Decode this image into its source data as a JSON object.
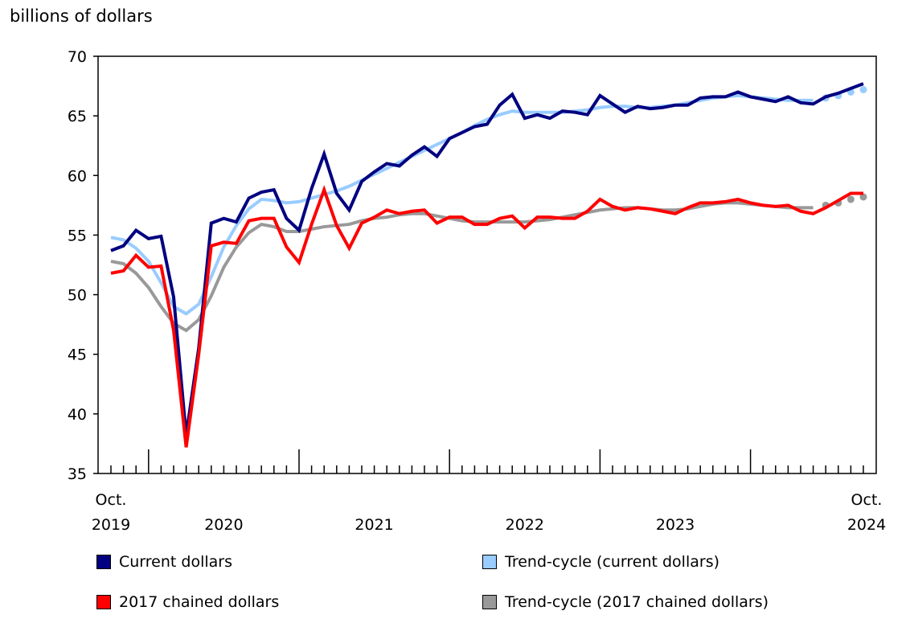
{
  "chart_data": {
    "type": "line",
    "ylabel": "billions of dollars",
    "ylim": [
      35,
      70
    ],
    "yticks": [
      35,
      40,
      45,
      50,
      55,
      60,
      65,
      70
    ],
    "x_start": "2019-10",
    "x_end": "2024-10",
    "x_tick_labels": [
      {
        "line1": "Oct.",
        "line2": "2019",
        "month": "2019-10"
      },
      {
        "line1": "",
        "line2": "2020",
        "month": "2020-07"
      },
      {
        "line1": "",
        "line2": "2021",
        "month": "2021-07"
      },
      {
        "line1": "",
        "line2": "2022",
        "month": "2022-07"
      },
      {
        "line1": "",
        "line2": "2023",
        "month": "2023-07"
      },
      {
        "line1": "Oct.",
        "line2": "2024",
        "month": "2024-10"
      }
    ],
    "grid": false,
    "legend_position": "bottom",
    "series": [
      {
        "name": "Current dollars",
        "color": "#000080",
        "style": "line",
        "values": [
          53.7,
          54.1,
          55.4,
          54.7,
          54.9,
          49.8,
          38.2,
          45.5,
          56.0,
          56.4,
          56.1,
          58.1,
          58.6,
          58.8,
          56.4,
          55.4,
          58.9,
          61.8,
          58.5,
          57.1,
          59.5,
          60.3,
          61.0,
          60.8,
          61.7,
          62.4,
          61.6,
          63.1,
          63.6,
          64.1,
          64.3,
          65.9,
          66.8,
          64.8,
          65.1,
          64.8,
          65.4,
          65.3,
          65.1,
          66.7,
          66.0,
          65.3,
          65.8,
          65.6,
          65.7,
          65.9,
          65.9,
          66.5,
          66.6,
          66.6,
          67.0,
          66.6,
          66.4,
          66.2,
          66.6,
          66.1,
          66.0,
          66.6,
          66.9,
          67.3,
          67.7
        ]
      },
      {
        "name": "Trend-cycle (current dollars)",
        "color": "#99CCFF",
        "style": "line",
        "values": [
          54.8,
          54.6,
          53.9,
          52.8,
          51.0,
          49.0,
          48.4,
          49.2,
          51.5,
          54.0,
          55.8,
          57.2,
          58.0,
          57.9,
          57.7,
          57.8,
          58.1,
          58.4,
          58.7,
          59.1,
          59.6,
          60.1,
          60.6,
          61.1,
          61.6,
          62.1,
          62.6,
          63.1,
          63.6,
          64.2,
          64.7,
          65.1,
          65.4,
          65.3,
          65.3,
          65.3,
          65.3,
          65.4,
          65.5,
          65.7,
          65.8,
          65.8,
          65.7,
          65.7,
          65.8,
          65.9,
          66.1,
          66.3,
          66.5,
          66.6,
          66.7,
          66.6,
          66.5,
          66.4,
          66.3,
          66.3,
          66.3
        ],
        "projected_values": [
          66.5,
          66.7,
          67.0,
          67.2
        ]
      },
      {
        "name": "2017 chained dollars",
        "color": "#FF0000",
        "style": "line",
        "values": [
          51.8,
          52.0,
          53.3,
          52.3,
          52.4,
          47.0,
          37.2,
          45.0,
          54.1,
          54.4,
          54.3,
          56.2,
          56.4,
          56.4,
          54.0,
          52.7,
          55.9,
          58.8,
          55.8,
          53.9,
          56.0,
          56.5,
          57.1,
          56.8,
          57.0,
          57.1,
          56.0,
          56.5,
          56.5,
          55.9,
          55.9,
          56.4,
          56.6,
          55.6,
          56.5,
          56.5,
          56.4,
          56.4,
          57.0,
          58.0,
          57.4,
          57.1,
          57.3,
          57.2,
          57.0,
          56.8,
          57.3,
          57.7,
          57.7,
          57.8,
          58.0,
          57.7,
          57.5,
          57.4,
          57.5,
          57.0,
          56.8,
          57.3,
          57.9,
          58.5,
          58.5
        ]
      },
      {
        "name": "Trend-cycle (2017 chained dollars)",
        "color": "#999999",
        "style": "line",
        "values": [
          52.8,
          52.6,
          51.8,
          50.6,
          49.0,
          47.6,
          47.0,
          47.9,
          49.9,
          52.3,
          54.0,
          55.2,
          55.9,
          55.7,
          55.3,
          55.3,
          55.5,
          55.7,
          55.8,
          55.9,
          56.2,
          56.4,
          56.5,
          56.7,
          56.8,
          56.8,
          56.6,
          56.4,
          56.2,
          56.1,
          56.1,
          56.1,
          56.1,
          56.1,
          56.2,
          56.3,
          56.5,
          56.7,
          56.9,
          57.1,
          57.2,
          57.3,
          57.3,
          57.2,
          57.1,
          57.1,
          57.2,
          57.4,
          57.6,
          57.7,
          57.7,
          57.6,
          57.5,
          57.4,
          57.3,
          57.3,
          57.3
        ],
        "projected_values": [
          57.5,
          57.7,
          58.0,
          58.2
        ]
      }
    ]
  }
}
